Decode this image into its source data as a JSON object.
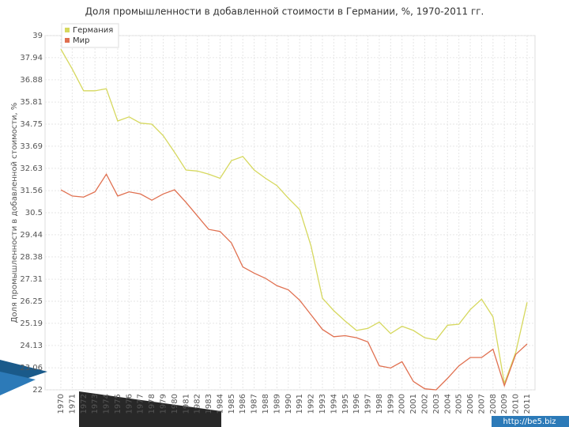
{
  "chart_data": {
    "type": "line",
    "title": "Доля промышленности в добавленной стоимости в Германии, %, 1970-2011 гг.",
    "y_label": "Доля промышленности в добавленной стоимости, %",
    "categories": [
      "1970",
      "1971",
      "1972",
      "1973",
      "1974",
      "1975",
      "1976",
      "1977",
      "1978",
      "1979",
      "1980",
      "1981",
      "1982",
      "1983",
      "1984",
      "1985",
      "1986",
      "1987",
      "1988",
      "1989",
      "1990",
      "1991",
      "1992",
      "1993",
      "1994",
      "1995",
      "1996",
      "1997",
      "1998",
      "1999",
      "2000",
      "2001",
      "2002",
      "2003",
      "2004",
      "2005",
      "2006",
      "2007",
      "2008",
      "2009",
      "2010",
      "2011"
    ],
    "series": [
      {
        "name": "Германия",
        "color": "#d6d85e",
        "values": [
          38.35,
          37.4,
          36.35,
          36.35,
          36.45,
          34.9,
          35.1,
          34.8,
          34.75,
          34.2,
          33.4,
          32.55,
          32.5,
          32.35,
          32.15,
          33.0,
          33.2,
          32.55,
          32.15,
          31.8,
          31.2,
          30.65,
          28.9,
          26.4,
          25.8,
          25.3,
          24.85,
          24.95,
          25.25,
          24.7,
          25.05,
          24.85,
          24.5,
          24.4,
          25.1,
          25.15,
          25.85,
          26.35,
          25.5,
          22.3,
          23.8,
          26.2
        ]
      },
      {
        "name": "Мир",
        "color": "#e07050",
        "values": [
          31.6,
          31.3,
          31.25,
          31.5,
          32.35,
          31.3,
          31.5,
          31.4,
          31.1,
          31.4,
          31.6,
          31.0,
          30.35,
          29.7,
          29.6,
          29.05,
          27.9,
          27.6,
          27.35,
          27.0,
          26.8,
          26.3,
          25.6,
          24.9,
          24.55,
          24.6,
          24.5,
          24.3,
          23.15,
          23.05,
          23.35,
          22.4,
          22.05,
          22.0,
          22.55,
          23.15,
          23.55,
          23.55,
          23.95,
          22.2,
          23.7,
          24.2
        ]
      }
    ],
    "ylim": [
      22,
      39
    ],
    "yticks": [
      22,
      23.06,
      24.13,
      25.19,
      26.25,
      27.31,
      28.38,
      29.44,
      30.5,
      31.56,
      32.63,
      33.69,
      34.75,
      35.81,
      36.88,
      37.94,
      39
    ],
    "grid": true,
    "legend": "top-left",
    "watermark": "http://be5.biz"
  }
}
